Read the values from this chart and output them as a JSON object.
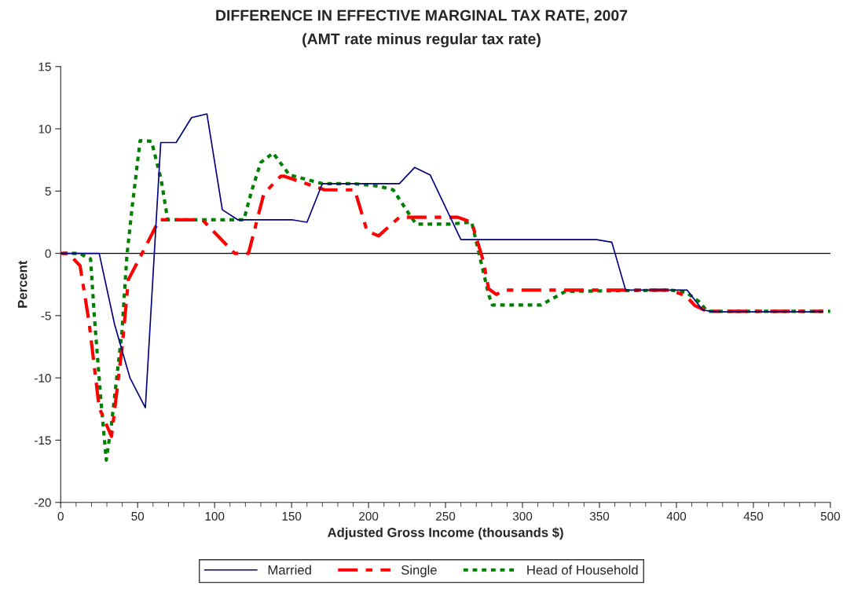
{
  "chart_data": {
    "type": "line",
    "title": "DIFFERENCE IN EFFECTIVE MARGINAL TAX RATE, 2007",
    "subtitle": "(AMT rate minus regular tax rate)",
    "xlabel": "Adjusted Gross Income (thousands $)",
    "ylabel": "Percent",
    "xlim": [
      0,
      500
    ],
    "xticks": [
      0,
      50,
      100,
      150,
      200,
      250,
      300,
      350,
      400,
      450,
      500
    ],
    "ylim": [
      -20,
      15
    ],
    "yticks": [
      -20,
      -15,
      -10,
      -5,
      0,
      5,
      10,
      15
    ],
    "grid": false,
    "legend": "bottom",
    "marker": "none",
    "ref_lines": [
      {
        "axis": "y",
        "value": 0,
        "color": "#000000",
        "line_style": "solid"
      }
    ],
    "series": [
      {
        "name": "Married",
        "color": "#000080",
        "line_style": "solid",
        "x": [
          0,
          25,
          35,
          45,
          55,
          65,
          75,
          85,
          95,
          105,
          115,
          150,
          160,
          170,
          220,
          230,
          240,
          260,
          348,
          358,
          367,
          407,
          417,
          425,
          495
        ],
        "values": [
          0,
          0,
          -5.7,
          -10,
          -12.4,
          8.9,
          8.9,
          10.9,
          11.2,
          3.5,
          2.7,
          2.7,
          2.5,
          5.6,
          5.6,
          6.9,
          6.3,
          1.1,
          1.1,
          0.9,
          -2.95,
          -2.95,
          -4.55,
          -4.7,
          -4.7
        ]
      },
      {
        "name": "Single",
        "color": "#ff0000",
        "line_style": "dashed",
        "x": [
          0,
          5,
          12.6,
          18.4,
          25,
          33,
          40,
          44,
          55,
          64,
          92,
          113,
          122,
          132,
          143,
          145,
          171.5,
          191,
          199,
          206.5,
          220,
          258,
          267,
          274.5,
          278,
          283,
          289,
          396,
          406,
          412,
          420,
          495
        ],
        "values": [
          0,
          0,
          -1,
          -5.5,
          -12.4,
          -14.7,
          -7.4,
          -2.1,
          0.5,
          2.7,
          2.7,
          0,
          0,
          4.8,
          6.2,
          6.2,
          5.1,
          5.1,
          1.8,
          1.4,
          2.9,
          2.9,
          2.5,
          -0.6,
          -2.85,
          -3.3,
          -2.95,
          -2.95,
          -3.4,
          -4.2,
          -4.65,
          -4.65
        ]
      },
      {
        "name": "Head of Household",
        "color": "#008000",
        "line_style": "dotted",
        "x": [
          0,
          12,
          19.4,
          22,
          26,
          29.6,
          33,
          39.8,
          43,
          46.5,
          51.6,
          59,
          65.3,
          69.5,
          119,
          124,
          130,
          138,
          148.6,
          170,
          190,
          206.5,
          216,
          227.7,
          231,
          253,
          267,
          278,
          280.4,
          312,
          328,
          396,
          406,
          415,
          420,
          500
        ],
        "values": [
          0,
          0,
          -0.45,
          -5.3,
          -11.6,
          -16.6,
          -13.7,
          -6.3,
          -0.2,
          3.8,
          9.05,
          9,
          5.9,
          2.7,
          2.7,
          5,
          7.3,
          8.05,
          6.3,
          5.6,
          5.6,
          5.4,
          5.1,
          2.9,
          2.35,
          2.35,
          2.5,
          -3.3,
          -4.15,
          -4.15,
          -3.05,
          -2.95,
          -3.1,
          -3.9,
          -4.65,
          -4.65
        ]
      }
    ]
  }
}
